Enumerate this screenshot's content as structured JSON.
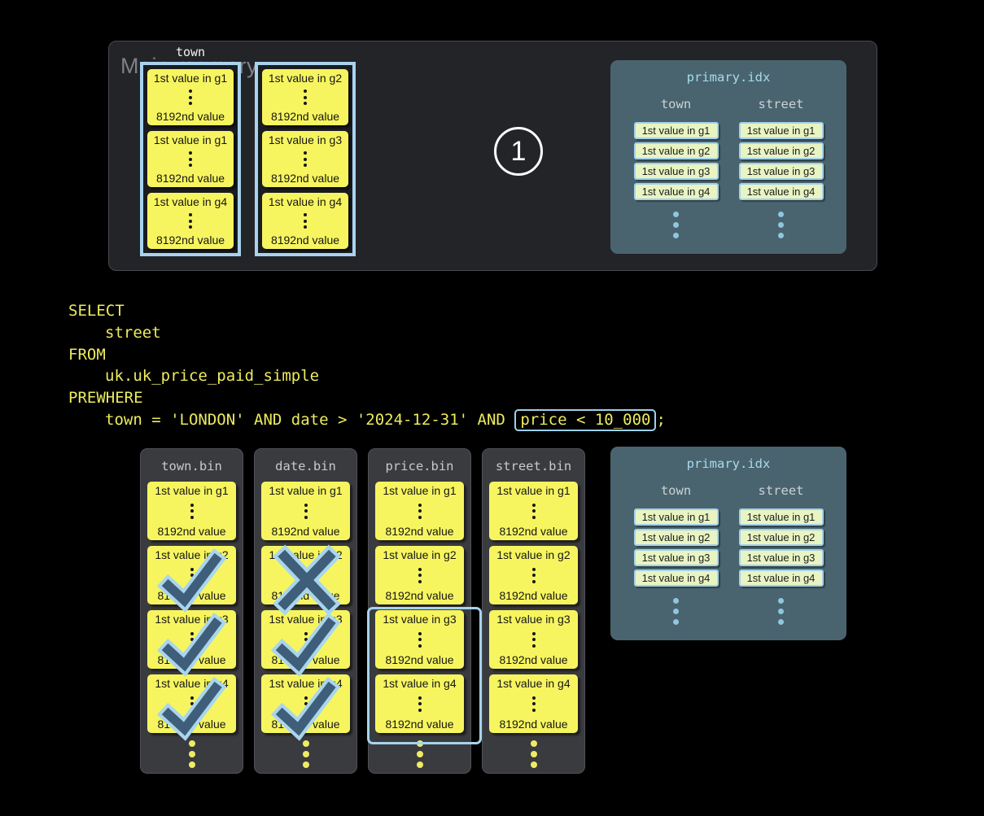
{
  "step_badge": "1",
  "main_memory": {
    "label": "Main memory",
    "column_label": "town",
    "columns": [
      {
        "blocks": [
          {
            "first": "1st value in g1",
            "last": "8192nd value"
          },
          {
            "first": "1st value in g1",
            "last": "8192nd value"
          },
          {
            "first": "1st value in g4",
            "last": "8192nd value"
          }
        ]
      },
      {
        "blocks": [
          {
            "first": "1st value in g2",
            "last": "8192nd value"
          },
          {
            "first": "1st value in g3",
            "last": "8192nd value"
          },
          {
            "first": "1st value in g4",
            "last": "8192nd value"
          }
        ]
      }
    ]
  },
  "primary_index": {
    "title": "primary.idx",
    "columns": [
      {
        "header": "town",
        "entries": [
          "1st value in g1",
          "1st value in g2",
          "1st value in g3",
          "1st value in g4"
        ]
      },
      {
        "header": "street",
        "entries": [
          "1st value in g1",
          "1st value in g2",
          "1st value in g3",
          "1st value in g4"
        ]
      }
    ]
  },
  "sql": {
    "lines": [
      {
        "text": "SELECT",
        "indent": false
      },
      {
        "text": "street",
        "indent": true
      },
      {
        "text": "FROM",
        "indent": false
      },
      {
        "text": "uk.uk_price_paid_simple",
        "indent": true
      },
      {
        "text": "PREWHERE",
        "indent": false
      },
      {
        "indent": true,
        "before": "town = 'LONDON' AND date > '2024-12-31' AND ",
        "boxed": "price < 10_000",
        "after": ";"
      }
    ]
  },
  "bin_files": [
    {
      "title": "town.bin",
      "granules": [
        {
          "first": "1st value in g1",
          "last": "8192nd value",
          "mark": null
        },
        {
          "first": "1st value in g2",
          "last": "8192nd value",
          "mark": "check"
        },
        {
          "first": "1st value in g3",
          "last": "8192nd value",
          "mark": "check"
        },
        {
          "first": "1st value in g4",
          "last": "8192nd value",
          "mark": "check"
        }
      ]
    },
    {
      "title": "date.bin",
      "granules": [
        {
          "first": "1st value in g1",
          "last": "8192nd value",
          "mark": null
        },
        {
          "first": "1st value in g2",
          "last": "8192nd value",
          "mark": "cross"
        },
        {
          "first": "1st value in g3",
          "last": "8192nd value",
          "mark": "check"
        },
        {
          "first": "1st value in g4",
          "last": "8192nd value",
          "mark": "check"
        }
      ]
    },
    {
      "title": "price.bin",
      "highlight_range": [
        2,
        3
      ],
      "granules": [
        {
          "first": "1st value in g1",
          "last": "8192nd value",
          "mark": null
        },
        {
          "first": "1st value in g2",
          "last": "8192nd value",
          "mark": null
        },
        {
          "first": "1st value in g3",
          "last": "8192nd value",
          "mark": null
        },
        {
          "first": "1st value in g4",
          "last": "8192nd value",
          "mark": null
        }
      ]
    },
    {
      "title": "street.bin",
      "granules": [
        {
          "first": "1st value in g1",
          "last": "8192nd value",
          "mark": null
        },
        {
          "first": "1st value in g2",
          "last": "8192nd value",
          "mark": null
        },
        {
          "first": "1st value in g3",
          "last": "8192nd value",
          "mark": null
        },
        {
          "first": "1st value in g4",
          "last": "8192nd value",
          "mark": null
        }
      ]
    }
  ],
  "colors": {
    "accent_blue": "#a7d3ee",
    "granule_yellow": "#f7f55f",
    "index_panel_slate": "#49646f",
    "index_chip_green": "#e9f4c3",
    "sql_yellow": "#eceb5f",
    "mark_dark_slate": "#3f5e7a"
  }
}
